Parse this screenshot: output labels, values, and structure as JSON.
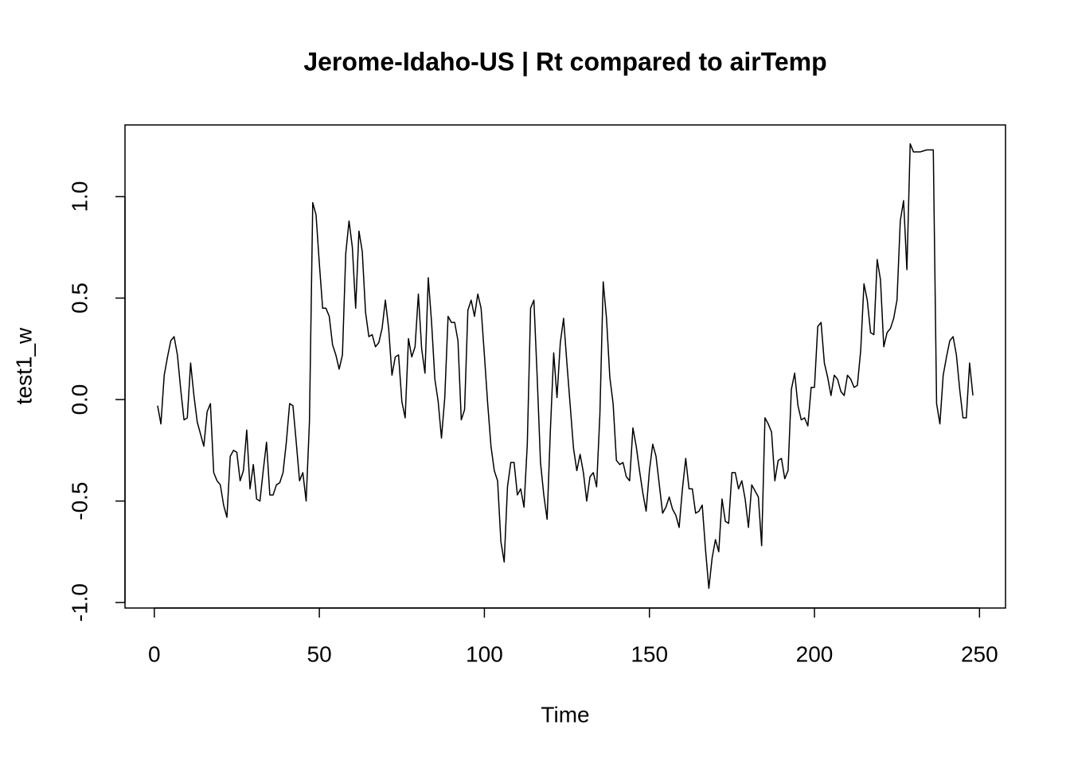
{
  "chart_data": {
    "type": "line",
    "title": "Jerome-Idaho-US | Rt compared to airTemp",
    "x_label": "Time",
    "y_label": "test1_w",
    "x": [
      1,
      2,
      3,
      4,
      5,
      6,
      7,
      8,
      9,
      10,
      11,
      12,
      13,
      14,
      15,
      16,
      17,
      18,
      19,
      20,
      21,
      22,
      23,
      24,
      25,
      26,
      27,
      28,
      29,
      30,
      31,
      32,
      33,
      34,
      35,
      36,
      37,
      38,
      39,
      40,
      41,
      42,
      43,
      44,
      45,
      46,
      47,
      48,
      49,
      50,
      51,
      52,
      53,
      54,
      55,
      56,
      57,
      58,
      59,
      60,
      61,
      62,
      63,
      64,
      65,
      66,
      67,
      68,
      69,
      70,
      71,
      72,
      73,
      74,
      75,
      76,
      77,
      78,
      79,
      80,
      81,
      82,
      83,
      84,
      85,
      86,
      87,
      88,
      89,
      90,
      91,
      92,
      93,
      94,
      95,
      96,
      97,
      98,
      99,
      100,
      101,
      102,
      103,
      104,
      105,
      106,
      107,
      108,
      109,
      110,
      111,
      112,
      113,
      114,
      115,
      116,
      117,
      118,
      119,
      120,
      121,
      122,
      123,
      124,
      125,
      126,
      127,
      128,
      129,
      130,
      131,
      132,
      133,
      134,
      135,
      136,
      137,
      138,
      139,
      140,
      141,
      142,
      143,
      144,
      145,
      146,
      147,
      148,
      149,
      150,
      151,
      152,
      153,
      154,
      155,
      156,
      157,
      158,
      159,
      160,
      161,
      162,
      163,
      164,
      165,
      166,
      167,
      168,
      169,
      170,
      171,
      172,
      173,
      174,
      175,
      176,
      177,
      178,
      179,
      180,
      181,
      182,
      183,
      184,
      185,
      186,
      187,
      188,
      189,
      190,
      191,
      192,
      193,
      194,
      195,
      196,
      197,
      198,
      199,
      200,
      201,
      202,
      203,
      204,
      205,
      206,
      207,
      208,
      209,
      210,
      211,
      212,
      213,
      214,
      215,
      216,
      217,
      218,
      219,
      220,
      221,
      222,
      223,
      224,
      225,
      226,
      227,
      228,
      229,
      230,
      231,
      232,
      233,
      234,
      235,
      236,
      237,
      238,
      239,
      240,
      241,
      242,
      243,
      244,
      245,
      246,
      247,
      248
    ],
    "series": [
      {
        "name": "test1_w",
        "color": "#000000",
        "values": [
          -0.03,
          -0.12,
          0.12,
          0.21,
          0.29,
          0.31,
          0.22,
          0.05,
          -0.1,
          -0.09,
          0.18,
          0.02,
          -0.11,
          -0.17,
          -0.23,
          -0.06,
          -0.02,
          -0.36,
          -0.4,
          -0.42,
          -0.52,
          -0.58,
          -0.28,
          -0.25,
          -0.26,
          -0.4,
          -0.35,
          -0.15,
          -0.44,
          -0.32,
          -0.49,
          -0.5,
          -0.35,
          -0.21,
          -0.47,
          -0.47,
          -0.42,
          -0.41,
          -0.36,
          -0.21,
          -0.02,
          -0.03,
          -0.21,
          -0.4,
          -0.36,
          -0.5,
          -0.11,
          0.97,
          0.91,
          0.67,
          0.45,
          0.45,
          0.41,
          0.27,
          0.22,
          0.15,
          0.22,
          0.72,
          0.88,
          0.75,
          0.45,
          0.83,
          0.73,
          0.43,
          0.31,
          0.32,
          0.26,
          0.28,
          0.35,
          0.49,
          0.35,
          0.12,
          0.21,
          0.22,
          -0.01,
          -0.09,
          0.3,
          0.21,
          0.26,
          0.52,
          0.25,
          0.13,
          0.6,
          0.38,
          0.1,
          -0.01,
          -0.19,
          0.01,
          0.41,
          0.38,
          0.38,
          0.29,
          -0.1,
          -0.05,
          0.44,
          0.49,
          0.41,
          0.52,
          0.45,
          0.22,
          -0.02,
          -0.23,
          -0.35,
          -0.4,
          -0.7,
          -0.8,
          -0.43,
          -0.31,
          -0.31,
          -0.47,
          -0.44,
          -0.53,
          -0.22,
          0.45,
          0.49,
          0.11,
          -0.31,
          -0.47,
          -0.59,
          -0.15,
          0.23,
          0.01,
          0.28,
          0.4,
          0.18,
          -0.03,
          -0.24,
          -0.35,
          -0.27,
          -0.36,
          -0.5,
          -0.38,
          -0.36,
          -0.43,
          -0.07,
          0.58,
          0.4,
          0.11,
          -0.02,
          -0.3,
          -0.32,
          -0.31,
          -0.38,
          -0.4,
          -0.14,
          -0.23,
          -0.35,
          -0.46,
          -0.55,
          -0.35,
          -0.22,
          -0.28,
          -0.42,
          -0.56,
          -0.53,
          -0.48,
          -0.54,
          -0.57,
          -0.63,
          -0.44,
          -0.29,
          -0.44,
          -0.44,
          -0.56,
          -0.55,
          -0.52,
          -0.74,
          -0.93,
          -0.78,
          -0.69,
          -0.75,
          -0.49,
          -0.6,
          -0.61,
          -0.36,
          -0.36,
          -0.44,
          -0.4,
          -0.49,
          -0.63,
          -0.42,
          -0.45,
          -0.48,
          -0.72,
          -0.09,
          -0.12,
          -0.16,
          -0.4,
          -0.3,
          -0.29,
          -0.39,
          -0.35,
          0.05,
          0.13,
          -0.03,
          -0.1,
          -0.09,
          -0.13,
          0.06,
          0.06,
          0.36,
          0.38,
          0.18,
          0.11,
          0.02,
          0.12,
          0.1,
          0.04,
          0.02,
          0.12,
          0.1,
          0.06,
          0.07,
          0.24,
          0.57,
          0.49,
          0.33,
          0.32,
          0.69,
          0.59,
          0.26,
          0.33,
          0.35,
          0.4,
          0.49,
          0.88,
          0.98,
          0.64,
          1.26,
          1.22,
          1.22,
          1.22,
          1.225,
          1.23,
          1.23,
          1.23,
          -0.02,
          -0.12,
          0.12,
          0.21,
          0.29,
          0.31,
          0.22,
          0.05,
          -0.09,
          -0.09,
          0.18,
          0.02
        ]
      }
    ],
    "xlim": [
      -8.88,
      257.88
    ],
    "xticks": [
      0,
      50,
      100,
      150,
      200,
      250
    ],
    "ylim": [
      -1.027,
      1.353
    ],
    "yticks": [
      {
        "value": -1,
        "label": "-1.0"
      },
      {
        "value": -0.5,
        "label": "-0.5"
      },
      {
        "value": 0,
        "label": "0.0"
      },
      {
        "value": 0.5,
        "label": "0.5"
      },
      {
        "value": 1,
        "label": "1.0"
      }
    ],
    "grid": false
  }
}
